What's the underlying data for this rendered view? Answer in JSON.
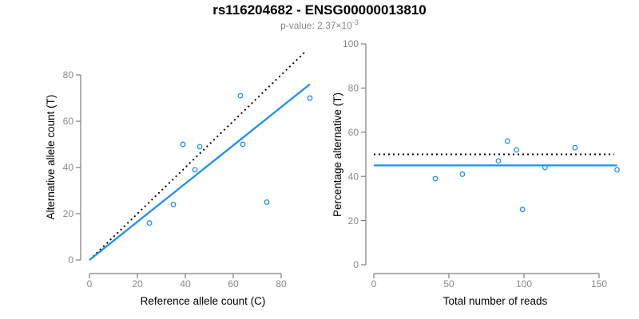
{
  "header": {
    "title": "rs116204682 - ENSG00000013810",
    "subtitle_prefix": "p-value: 2.37×10",
    "subtitle_exponent": "-3"
  },
  "colors": {
    "accent_blue": "#1E90FF",
    "dotted_black": "#000000",
    "axis_line": "#7f7f7f",
    "tick_label": "#8a8a8a",
    "subtitle_gray": "#878787"
  },
  "chart_data": [
    {
      "type": "scatter",
      "xlabel": "Reference allele count (C)",
      "ylabel": "Alternative allele count (T)",
      "xticks": [
        0,
        20,
        40,
        60,
        80
      ],
      "yticks": [
        0,
        20,
        40,
        60,
        80
      ],
      "xlim": [
        0,
        95
      ],
      "ylim": [
        0,
        92
      ],
      "grid": false,
      "points": [
        [
          25,
          16
        ],
        [
          35,
          24
        ],
        [
          39,
          50
        ],
        [
          44,
          39
        ],
        [
          46,
          49
        ],
        [
          63,
          71
        ],
        [
          64,
          50
        ],
        [
          74,
          25
        ],
        [
          92,
          70
        ]
      ],
      "lines": [
        {
          "name": "identity-line",
          "style": "dotted",
          "color": "#000000",
          "x1": 0,
          "y1": 0,
          "x2": 90,
          "y2": 90
        },
        {
          "name": "fit-line",
          "style": "solid",
          "color": "#1E90FF",
          "x1": 0,
          "y1": 0,
          "x2": 92,
          "y2": 76
        }
      ]
    },
    {
      "type": "scatter",
      "xlabel": "Total number of reads",
      "ylabel": "Percentage alternative (T)",
      "xticks": [
        0,
        50,
        100,
        150
      ],
      "yticks": [
        0,
        20,
        40,
        60,
        80,
        100
      ],
      "xlim": [
        0,
        165
      ],
      "ylim": [
        0,
        100
      ],
      "grid": false,
      "points": [
        [
          41,
          39
        ],
        [
          59,
          41
        ],
        [
          83,
          47
        ],
        [
          89,
          56
        ],
        [
          95,
          52
        ],
        [
          99,
          25
        ],
        [
          114,
          44
        ],
        [
          134,
          53
        ],
        [
          162,
          43
        ]
      ],
      "lines": [
        {
          "name": "expected-percentage-line",
          "style": "dotted",
          "color": "#000000",
          "x1": 0,
          "y1": 50,
          "x2": 160,
          "y2": 50
        },
        {
          "name": "mean-percentage-line",
          "style": "solid",
          "color": "#1E90FF",
          "x1": 0,
          "y1": 45,
          "x2": 162,
          "y2": 45
        }
      ]
    }
  ]
}
